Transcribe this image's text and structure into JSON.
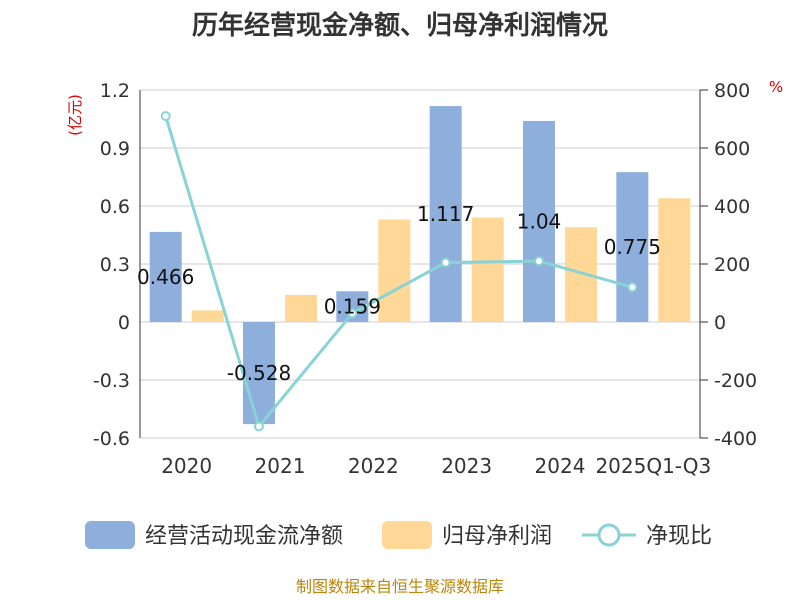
{
  "chart_data": {
    "type": "bar",
    "title": "历年经营现金净额、归母净利润情况",
    "categories": [
      "2020",
      "2021",
      "2022",
      "2023",
      "2024",
      "2025Q1-Q3"
    ],
    "series": [
      {
        "name": "经营活动现金流净额",
        "type": "bar",
        "axis": "left",
        "color": "#8eaedb",
        "values": [
          0.466,
          -0.528,
          0.159,
          1.117,
          1.04,
          0.775
        ]
      },
      {
        "name": "归母净利润",
        "type": "bar",
        "axis": "left",
        "color": "#ffd797",
        "values": [
          0.06,
          0.14,
          0.53,
          0.54,
          0.49,
          0.64
        ]
      },
      {
        "name": "净现比",
        "type": "line",
        "axis": "right",
        "color": "#88d3d6",
        "values": [
          710,
          -360,
          30,
          205,
          210,
          120
        ]
      }
    ],
    "data_labels": [
      "0.466",
      "-0.528",
      "0.159",
      "1.117",
      "1.04",
      "0.775"
    ],
    "y_left": {
      "label": "(亿元)",
      "ylim": [
        -0.6,
        1.2
      ],
      "ticks": [
        "1.2",
        "0.9",
        "0.6",
        "0.3",
        "0",
        "-0.3",
        "-0.6"
      ]
    },
    "y_right": {
      "label": "%",
      "ylim": [
        -400,
        800
      ],
      "ticks": [
        "800",
        "600",
        "400",
        "200",
        "0",
        "-200",
        "-400"
      ]
    },
    "grid": true,
    "legend_position": "bottom"
  },
  "source": "制图数据来自恒生聚源数据库"
}
